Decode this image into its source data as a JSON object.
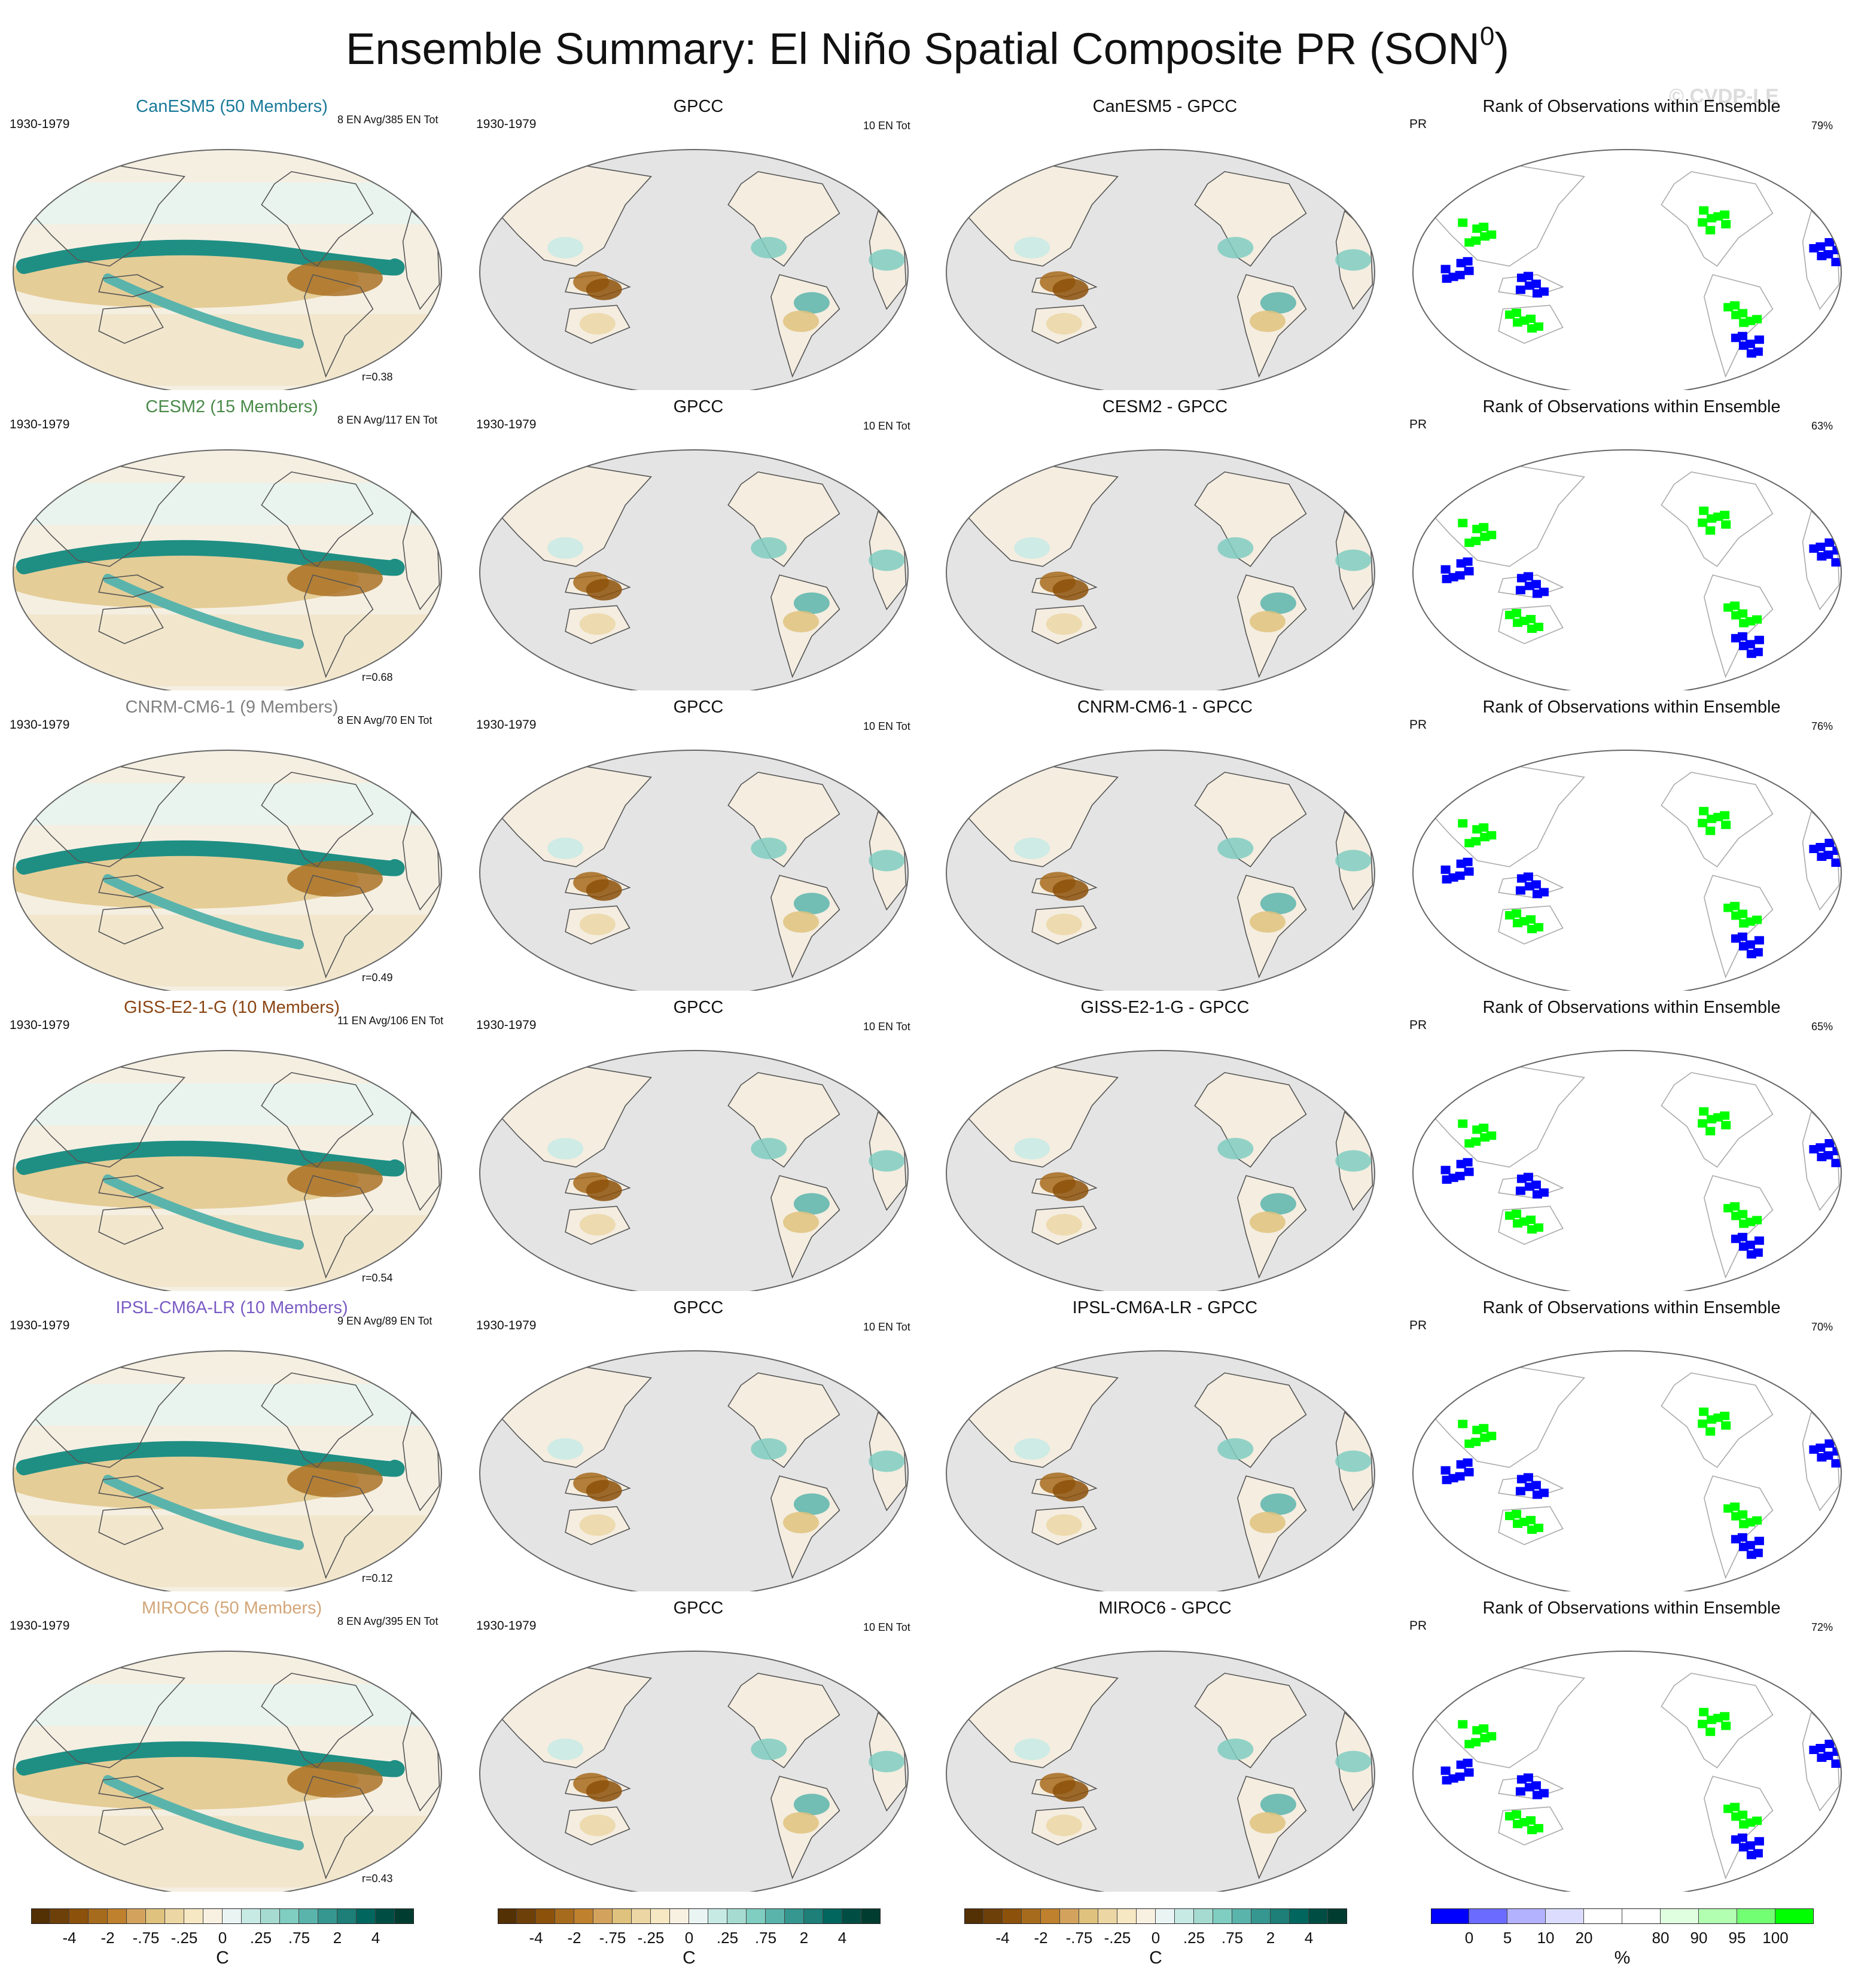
{
  "title": "Ensemble Summary: El Niño Spatial Composite PR (SON",
  "title_superscript": "0",
  "title_suffix": ")",
  "watermark": "© CVDP-LE",
  "rows": [
    {
      "model": {
        "title": "CanESM5 (50 Members)",
        "color": "#1a7a9a",
        "period": "1930-1979",
        "events": "8 EN Avg/385 EN Tot",
        "correlation": "r=0.38"
      },
      "obs": {
        "title": "GPCC",
        "period": "1930-1979",
        "events": "10 EN Tot"
      },
      "diff": {
        "title": "CanESM5 - GPCC"
      },
      "rank": {
        "title": "Rank of Observations within Ensemble",
        "variable": "PR",
        "percent": "79%"
      }
    },
    {
      "model": {
        "title": "CESM2 (15 Members)",
        "color": "#4a8a4a",
        "period": "1930-1979",
        "events": "8 EN Avg/117 EN Tot",
        "correlation": "r=0.68"
      },
      "obs": {
        "title": "GPCC",
        "period": "1930-1979",
        "events": "10 EN Tot"
      },
      "diff": {
        "title": "CESM2 - GPCC"
      },
      "rank": {
        "title": "Rank of Observations within Ensemble",
        "variable": "PR",
        "percent": "63%"
      }
    },
    {
      "model": {
        "title": "CNRM-CM6-1 (9 Members)",
        "color": "#808080",
        "period": "1930-1979",
        "events": "8 EN Avg/70 EN Tot",
        "correlation": "r=0.49"
      },
      "obs": {
        "title": "GPCC",
        "period": "1930-1979",
        "events": "10 EN Tot"
      },
      "diff": {
        "title": "CNRM-CM6-1 - GPCC"
      },
      "rank": {
        "title": "Rank of Observations within Ensemble",
        "variable": "PR",
        "percent": "76%"
      }
    },
    {
      "model": {
        "title": "GISS-E2-1-G (10 Members)",
        "color": "#8b4513",
        "period": "1930-1979",
        "events": "11 EN Avg/106 EN Tot",
        "correlation": "r=0.54"
      },
      "obs": {
        "title": "GPCC",
        "period": "1930-1979",
        "events": "10 EN Tot"
      },
      "diff": {
        "title": "GISS-E2-1-G - GPCC"
      },
      "rank": {
        "title": "Rank of Observations within Ensemble",
        "variable": "PR",
        "percent": "65%"
      }
    },
    {
      "model": {
        "title": "IPSL-CM6A-LR (10 Members)",
        "color": "#7b5cc4",
        "period": "1930-1979",
        "events": "9 EN Avg/89 EN Tot",
        "correlation": "r=0.12"
      },
      "obs": {
        "title": "GPCC",
        "period": "1930-1979",
        "events": "10 EN Tot"
      },
      "diff": {
        "title": "IPSL-CM6A-LR - GPCC"
      },
      "rank": {
        "title": "Rank of Observations within Ensemble",
        "variable": "PR",
        "percent": "70%"
      }
    },
    {
      "model": {
        "title": "MIROC6 (50 Members)",
        "color": "#d2a679",
        "period": "1930-1979",
        "events": "8 EN Avg/395 EN Tot",
        "correlation": "r=0.43"
      },
      "obs": {
        "title": "GPCC",
        "period": "1930-1979",
        "events": "10 EN Tot"
      },
      "diff": {
        "title": "MIROC6 - GPCC"
      },
      "rank": {
        "title": "Rank of Observations within Ensemble",
        "variable": "PR",
        "percent": "72%"
      }
    }
  ],
  "colorbars": {
    "diverging": {
      "unit": "C",
      "tick_labels": [
        "-4",
        "-2",
        "-.75",
        "-.25",
        "0",
        ".25",
        ".75",
        "2",
        "4"
      ],
      "colors": [
        "#543005",
        "#6e4009",
        "#8c510a",
        "#a76b1d",
        "#bf812d",
        "#d3a35d",
        "#dfc27d",
        "#ebd6a4",
        "#f6e8c3",
        "#f8f1e1",
        "#eaf5f3",
        "#c7eae5",
        "#a6dbd1",
        "#80cdc1",
        "#5ab4ac",
        "#35978f",
        "#1d7f77",
        "#01665e",
        "#004d44",
        "#003c30"
      ]
    },
    "rank": {
      "unit": "%",
      "tick_labels": [
        "0",
        "5",
        "10",
        "20",
        "80",
        "90",
        "95",
        "100"
      ],
      "colors": [
        "#0000ff",
        "#6b6bff",
        "#b2b2ff",
        "#dcdcff",
        "#ffffff",
        "#ffffff",
        "#e0ffe0",
        "#b2ffb2",
        "#73ff73",
        "#00ff00"
      ]
    }
  }
}
